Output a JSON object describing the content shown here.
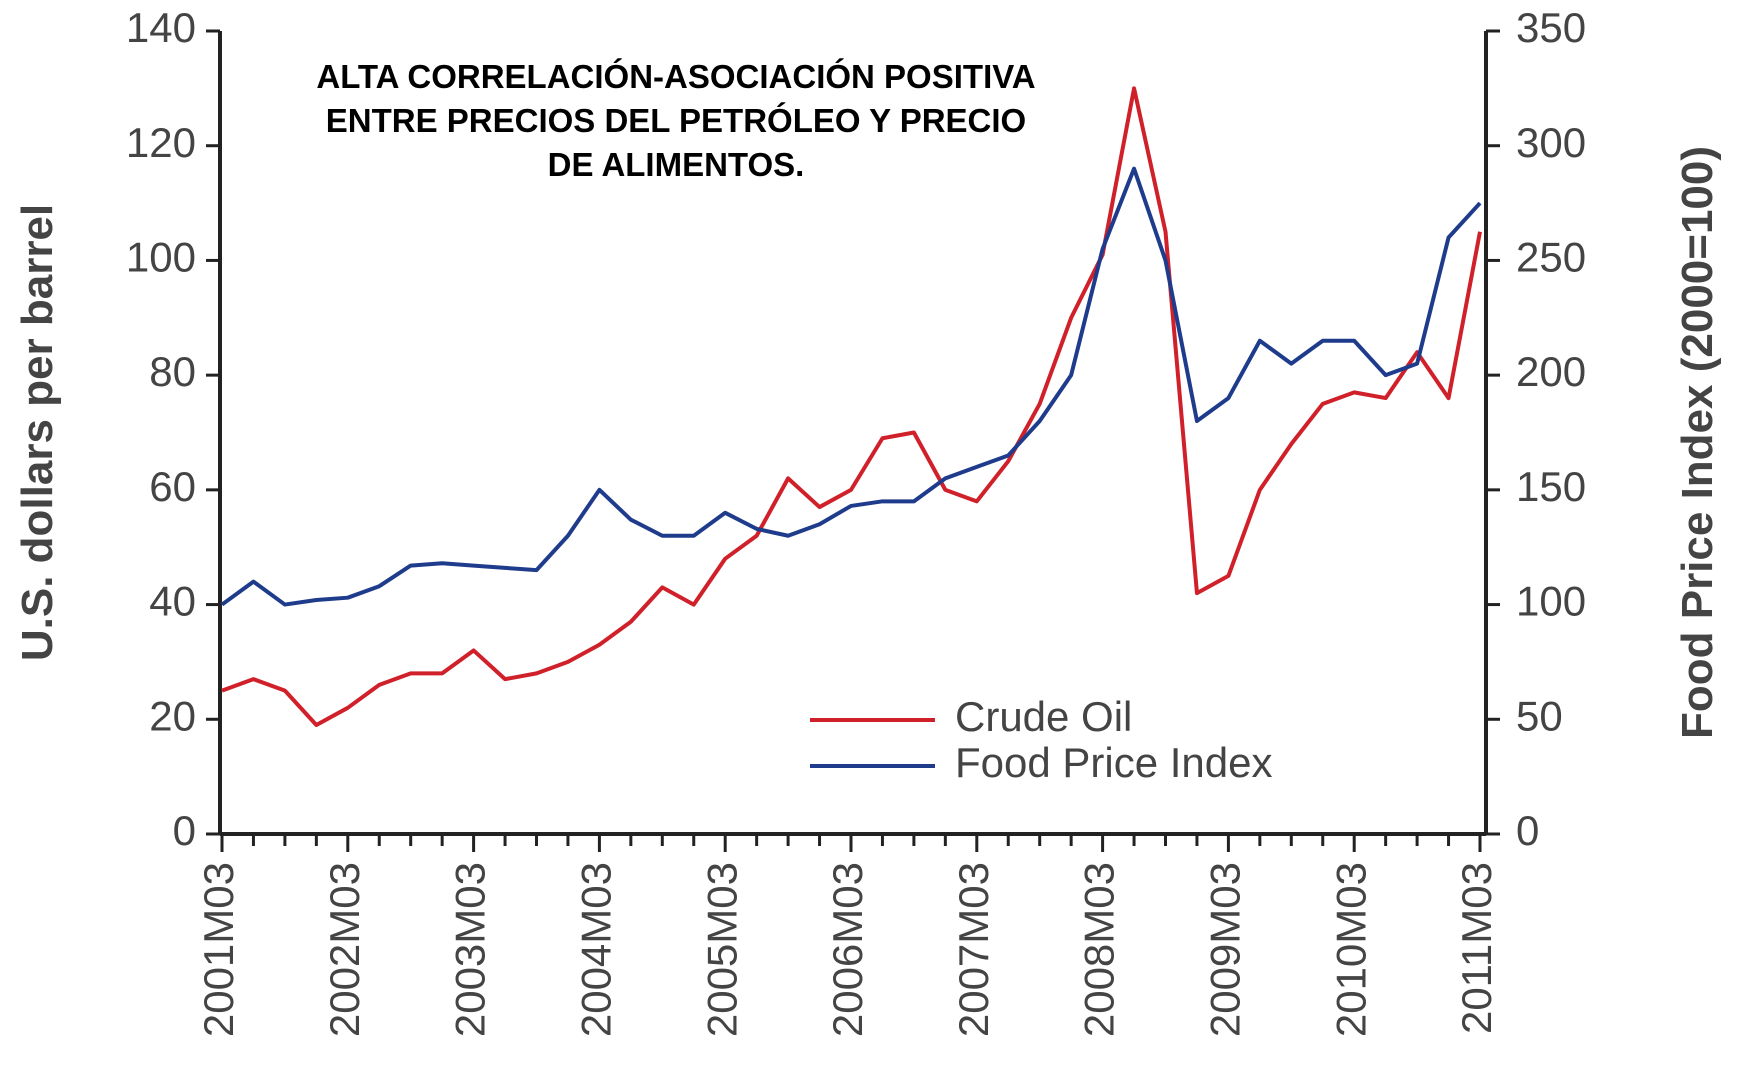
{
  "chart_data": {
    "type": "line",
    "title": [
      "ALTA CORRELACIÓN-ASOCIACIÓN POSITIVA",
      "ENTRE PRECIOS DEL PETRÓLEO Y PRECIO",
      "DE ALIMENTOS."
    ],
    "y_label": "U.S. dollars per barrel",
    "y2_label": "Food Price Index (2000=100)",
    "categories": [
      "2001M03",
      null,
      null,
      null,
      "2002M03",
      null,
      null,
      null,
      "2003M03",
      null,
      null,
      null,
      "2004M03",
      null,
      null,
      null,
      "2005M03",
      null,
      null,
      null,
      "2006M03",
      null,
      null,
      null,
      "2007M03",
      null,
      null,
      null,
      "2008M03",
      null,
      null,
      null,
      "2009M03",
      null,
      null,
      null,
      "2010M03",
      null,
      null,
      null,
      "2011M03"
    ],
    "series": [
      {
        "name": "Crude Oil",
        "color": "#d0202a",
        "axis": "y",
        "values": [
          25,
          27,
          25,
          19,
          22,
          26,
          28,
          28,
          32,
          27,
          28,
          30,
          33,
          37,
          43,
          40,
          48,
          52,
          62,
          57,
          60,
          69,
          70,
          60,
          58,
          65,
          75,
          90,
          101,
          130,
          105,
          42,
          45,
          60,
          68,
          75,
          77,
          76,
          84,
          76,
          105
        ]
      },
      {
        "name": "Food Price Index",
        "color": "#1f3c8c",
        "axis": "y2",
        "values": [
          100,
          110,
          100,
          102,
          103,
          108,
          117,
          118,
          117,
          116,
          115,
          130,
          150,
          137,
          130,
          130,
          140,
          133,
          130,
          135,
          143,
          145,
          145,
          155,
          160,
          165,
          180,
          200,
          255,
          290,
          250,
          180,
          190,
          215,
          205,
          215,
          215,
          200,
          205,
          260,
          275
        ]
      }
    ],
    "ylim": [
      0,
      140
    ],
    "yticks": [
      0,
      20,
      40,
      60,
      80,
      100,
      120,
      140
    ],
    "y2lim": [
      0,
      350
    ],
    "y2ticks": [
      0,
      50,
      100,
      150,
      200,
      250,
      300,
      350
    ],
    "legend": "lower-center"
  }
}
